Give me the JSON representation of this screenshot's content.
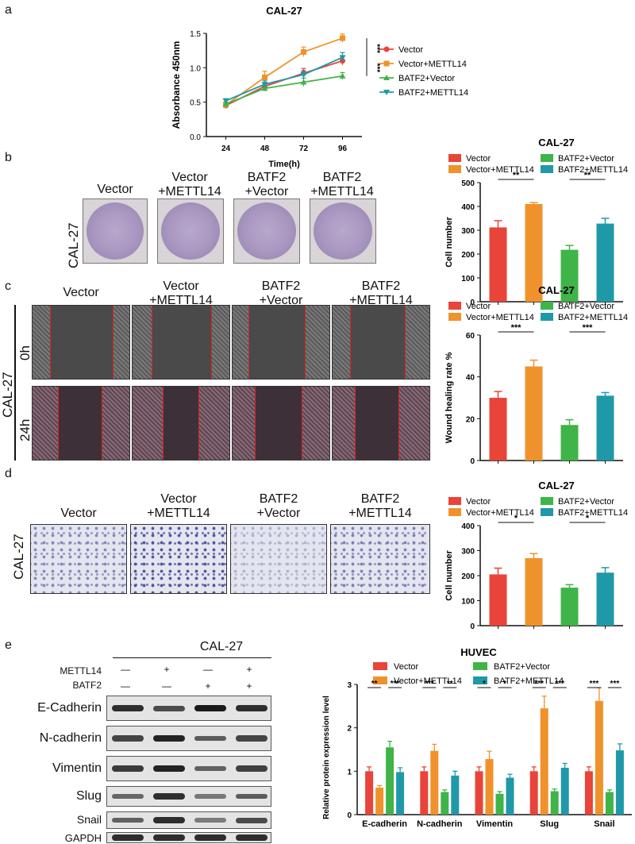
{
  "panels": {
    "a": "a",
    "b": "b",
    "c": "c",
    "d": "d",
    "e": "e"
  },
  "groups": [
    "Vector",
    "Vector\n+METTL14",
    "BATF2\n+Vector",
    "BATF2\n+METTL14"
  ],
  "cell_line": "CAL-27",
  "wound_times": [
    "0h",
    "24h"
  ],
  "western": {
    "header": "CAL-27",
    "row1_label": "METTL14",
    "row2_label": "BATF2",
    "row1_marks": [
      "—",
      "+",
      "—",
      "+"
    ],
    "row2_marks": [
      "—",
      "—",
      "+",
      "+"
    ],
    "proteins": [
      "E-Cadherin",
      "N-cadherin",
      "Vimentin",
      "Slug",
      "Snail",
      "GAPDH"
    ]
  },
  "colors": {
    "red": "#e8443a",
    "orange": "#f0922b",
    "green": "#3fb448",
    "teal": "#1f99a8"
  },
  "chart_data": [
    {
      "type": "line",
      "title": "CAL-27",
      "xlabel": "Time(h)",
      "ylabel": "Absorbance 450nm",
      "x": [
        24,
        48,
        72,
        96
      ],
      "ylim": [
        0,
        1.5
      ],
      "yticks": [
        "0.0",
        "0.5",
        "1.0",
        "1.5"
      ],
      "series": [
        {
          "name": "Vector",
          "values": [
            0.45,
            0.73,
            0.92,
            1.1
          ],
          "err": [
            0.03,
            0.05,
            0.07,
            0.06
          ],
          "color": "#e8443a",
          "marker": "circle"
        },
        {
          "name": "Vector+METTL14",
          "values": [
            0.46,
            0.86,
            1.23,
            1.43
          ],
          "err": [
            0.03,
            0.09,
            0.07,
            0.06
          ],
          "color": "#f0922b",
          "marker": "square"
        },
        {
          "name": "BATF2+Vector",
          "values": [
            0.47,
            0.7,
            0.79,
            0.88
          ],
          "err": [
            0.03,
            0.04,
            0.06,
            0.05
          ],
          "color": "#3fb448",
          "marker": "triangle"
        },
        {
          "name": "BATF2+METTL14",
          "values": [
            0.52,
            0.76,
            0.9,
            1.15
          ],
          "err": [
            0.03,
            0.05,
            0.06,
            0.07
          ],
          "color": "#1f99a8",
          "marker": "tri-down"
        }
      ],
      "annotations": [
        "***",
        "***"
      ],
      "legend": "right"
    },
    {
      "type": "bar",
      "title": "CAL-27",
      "ylabel": "Cell number",
      "categories": [
        "Vector",
        "Vector+METTL14",
        "BATF2+Vector",
        "BATF2+METTL14"
      ],
      "values": [
        312,
        410,
        218,
        328
      ],
      "err": [
        28,
        6,
        18,
        22
      ],
      "ylim": [
        0,
        500
      ],
      "yticks": [
        "0",
        "100",
        "200",
        "300",
        "400",
        "500"
      ],
      "sig": [
        "**",
        "**"
      ],
      "legend": "top"
    },
    {
      "type": "bar",
      "title": "CAL-27",
      "ylabel": "Wound healing rate %",
      "categories": [
        "Vector",
        "Vector+METTL14",
        "BATF2+Vector",
        "BATF2+METTL14"
      ],
      "values": [
        30,
        45,
        17,
        31
      ],
      "err": [
        3,
        3,
        2.5,
        1.5
      ],
      "ylim": [
        0,
        60
      ],
      "yticks": [
        "0",
        "20",
        "40",
        "60"
      ],
      "sig": [
        "***",
        "***"
      ],
      "legend": "top"
    },
    {
      "type": "bar",
      "title": "CAL-27",
      "ylabel": "Cell number",
      "categories": [
        "Vector",
        "Vector+METTL14",
        "BATF2+Vector",
        "BATF2+METTL14"
      ],
      "values": [
        205,
        270,
        152,
        212
      ],
      "err": [
        25,
        18,
        12,
        20
      ],
      "ylim": [
        0,
        400
      ],
      "yticks": [
        "0",
        "100",
        "200",
        "300",
        "400"
      ],
      "sig": [
        "*",
        "*"
      ],
      "legend": "top"
    },
    {
      "type": "bar",
      "title": "HUVEC",
      "ylabel": "Relative protein expression level",
      "categories": [
        "E-cadherin",
        "N-cadherin",
        "Vimentin",
        "Slug",
        "Snail"
      ],
      "ylim": [
        0,
        3
      ],
      "yticks": [
        "0",
        "1",
        "2",
        "3"
      ],
      "series": [
        {
          "name": "Vector",
          "values": [
            1.0,
            1.0,
            1.0,
            1.0,
            1.0
          ],
          "err": [
            0.1,
            0.1,
            0.1,
            0.1,
            0.1
          ],
          "color": "#e8443a"
        },
        {
          "name": "Vector+METTL14",
          "values": [
            0.62,
            1.47,
            1.28,
            2.45,
            2.62
          ],
          "err": [
            0.05,
            0.15,
            0.18,
            0.28,
            0.3
          ],
          "color": "#f0922b"
        },
        {
          "name": "BATF2+Vector",
          "values": [
            1.55,
            0.52,
            0.48,
            0.54,
            0.52
          ],
          "err": [
            0.14,
            0.05,
            0.05,
            0.05,
            0.05
          ],
          "color": "#3fb448"
        },
        {
          "name": "BATF2+METTL14",
          "values": [
            0.98,
            0.9,
            0.85,
            1.08,
            1.48
          ],
          "err": [
            0.1,
            0.1,
            0.08,
            0.1,
            0.15
          ],
          "color": "#1f99a8"
        }
      ],
      "sig": [
        [
          "**",
          "***"
        ],
        [
          "***",
          "**"
        ],
        [
          "*",
          "*"
        ],
        [
          "***",
          "***"
        ],
        [
          "***",
          "***"
        ]
      ],
      "legend": "top"
    }
  ]
}
